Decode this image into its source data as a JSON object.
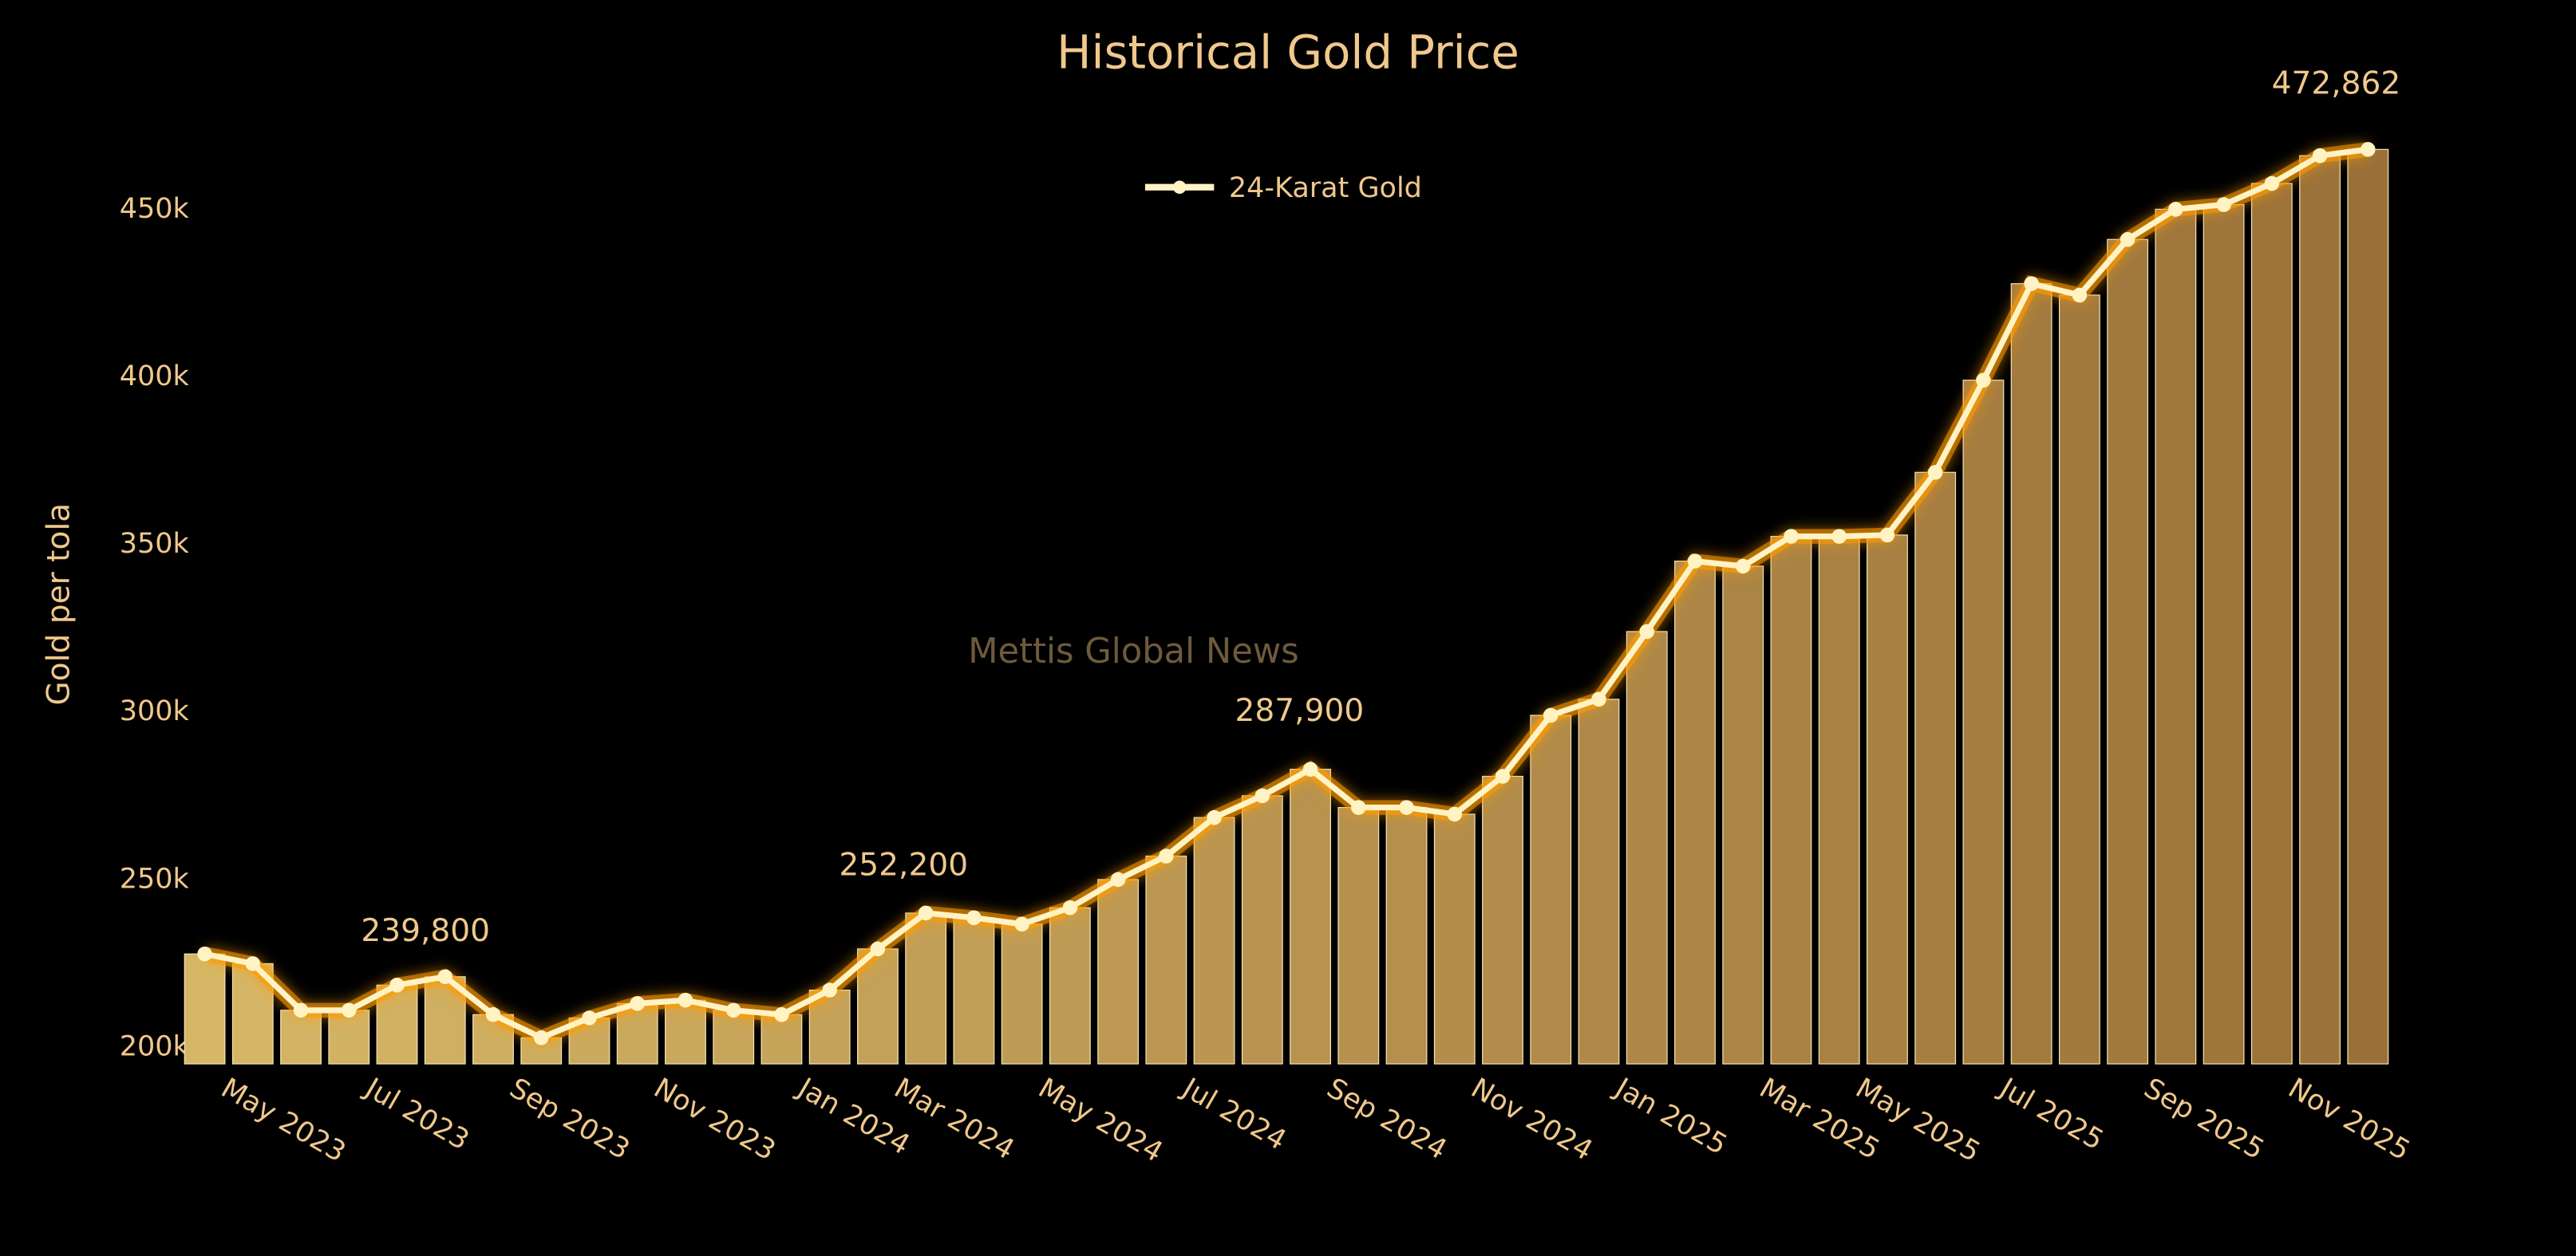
{
  "chart_data": {
    "type": "bar-line",
    "title": "Historical Gold Price",
    "ylabel": "Gold per tola",
    "watermark": "Mettis Global News",
    "categories": [
      null,
      "May 2023",
      null,
      null,
      "Jul 2023",
      null,
      null,
      "Sep 2023",
      null,
      null,
      "Nov 2023",
      null,
      null,
      "Jan 2024",
      null,
      "Mar 2024",
      null,
      null,
      "May 2024",
      null,
      null,
      "Jul 2024",
      null,
      null,
      "Sep 2024",
      null,
      null,
      "Nov 2024",
      null,
      null,
      "Jan 2025",
      null,
      null,
      "Mar 2025",
      null,
      "May 2025",
      null,
      null,
      "Jul 2025",
      null,
      null,
      "Sep 2025",
      null,
      null,
      "Nov 2025",
      null
    ],
    "series": [
      {
        "name": "24-Karat Gold",
        "color": "#fff3c4",
        "values": [
          232800,
          229900,
          216000,
          216000,
          223500,
          226000,
          214700,
          207800,
          213700,
          218000,
          219000,
          216000,
          214700,
          222000,
          234300,
          245000,
          243600,
          241700,
          246600,
          255000,
          262000,
          273500,
          280000,
          287900,
          276500,
          276500,
          274500,
          285800,
          304000,
          308800,
          329000,
          350000,
          348500,
          357400,
          357400,
          357800,
          376500,
          404000,
          432800,
          429400,
          446000,
          455000,
          456400,
          462700,
          471000,
          472862
        ]
      }
    ],
    "bar_colors": [
      "#d6b766",
      "#9a7038"
    ],
    "annotations": [
      "239,800",
      "252,200",
      "287,900",
      "472,862"
    ],
    "ylim": [
      200000,
      490000
    ],
    "yticks": [
      {
        "value": 200000,
        "label": "200k"
      },
      {
        "value": 250000,
        "label": "250k"
      },
      {
        "value": 300000,
        "label": "300k"
      },
      {
        "value": 350000,
        "label": "350k"
      },
      {
        "value": 400000,
        "label": "400k"
      },
      {
        "value": 450000,
        "label": "450k"
      }
    ]
  }
}
